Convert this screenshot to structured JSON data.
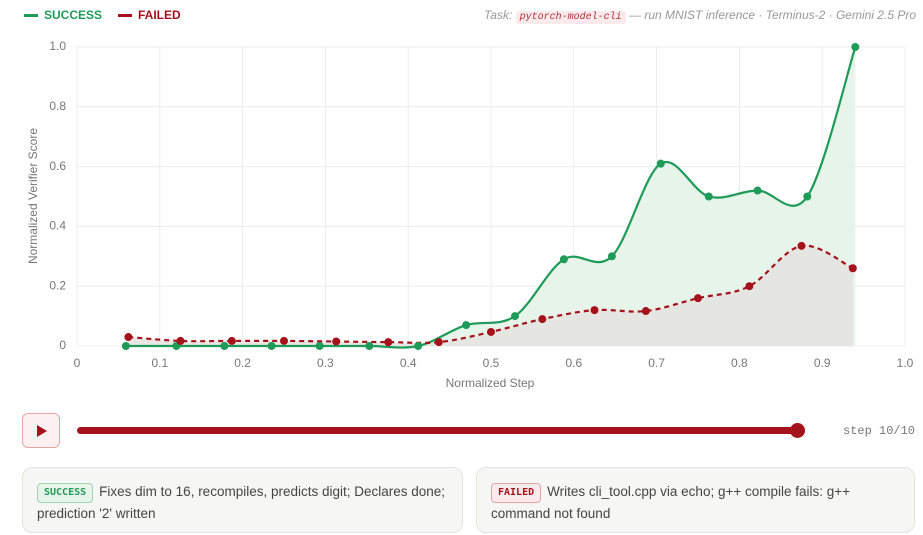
{
  "header": {
    "task_label": "Task:",
    "task_code": "pytorch-model-cli",
    "task_desc": "— run MNIST inference · Terminus-2 · Gemini 2.5 Pro"
  },
  "chart_data": {
    "type": "line",
    "xlabel": "Normalized Step",
    "ylabel": "Normalized Verifier Score",
    "series": [
      {
        "name": "SUCCESS",
        "color": "#1e9b58",
        "fill": "#e6f4ea",
        "dashed": false,
        "x": [
          0.059,
          0.12,
          0.178,
          0.235,
          0.293,
          0.353,
          0.412,
          0.47,
          0.529,
          0.588,
          0.646,
          0.705,
          0.763,
          0.822,
          0.882,
          0.94
        ],
        "values": [
          0,
          0,
          0,
          0,
          0,
          0,
          0,
          0.07,
          0.1,
          0.29,
          0.3,
          0.61,
          0.5,
          0.52,
          0.5,
          1.0
        ]
      },
      {
        "name": "FAILED",
        "color": "#a5121c",
        "fill": "#e4e3df",
        "dashed": true,
        "x": [
          0.062,
          0.125,
          0.187,
          0.25,
          0.313,
          0.376,
          0.437,
          0.5,
          0.562,
          0.625,
          0.687,
          0.75,
          0.812,
          0.875,
          0.937
        ],
        "values": [
          0.03,
          0.017,
          0.017,
          0.017,
          0.015,
          0.013,
          0.013,
          0.047,
          0.09,
          0.12,
          0.117,
          0.16,
          0.2,
          0.335,
          0.26
        ]
      }
    ],
    "xlim": [
      0,
      1
    ],
    "ylim": [
      0,
      1
    ],
    "xticks": [
      0,
      0.1,
      0.2,
      0.3,
      0.4,
      0.5,
      0.6,
      0.7,
      0.8,
      0.9,
      {
        "value": 1,
        "label": "1.0"
      }
    ],
    "yticks": [
      0,
      0.2,
      0.4,
      0.6,
      0.8,
      {
        "value": 1,
        "label": "1.0"
      }
    ],
    "grid": true
  },
  "player": {
    "step_label": "step 10/10"
  },
  "cards": [
    {
      "text": "Fixes dim to 16, recompiles, predicts digit; Declares done; prediction '2' written"
    },
    {
      "text": "Writes cli_tool.cpp via echo; g++ compile fails: g++ command not found"
    }
  ]
}
